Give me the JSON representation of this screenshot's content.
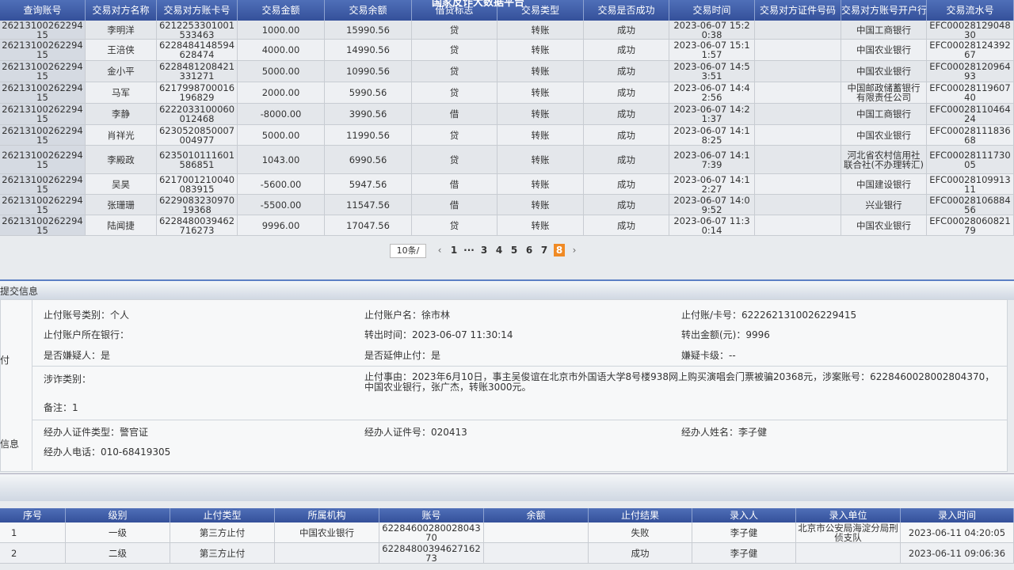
{
  "header": {
    "title": "国家反诈大数据平台"
  },
  "transactions": {
    "columns": [
      "查询账号",
      "交易对方名称",
      "交易对方账卡号",
      "交易金额",
      "交易余额",
      "借贷标志",
      "交易类型",
      "交易是否成功",
      "交易时间",
      "交易对方证件号码",
      "交易对方账号开户行",
      "交易流水号"
    ],
    "rows": [
      [
        "2621310026229415",
        "李明洋",
        "6212253301001533463",
        "1000.00",
        "15990.56",
        "贷",
        "转账",
        "成功",
        "2023-06-07 15:20:38",
        null,
        "中国工商银行",
        "EFC0002812904830"
      ],
      [
        "2621310026229415",
        "王涪侠",
        "6228484148594628474",
        "4000.00",
        "14990.56",
        "贷",
        "转账",
        "成功",
        "2023-06-07 15:11:57",
        null,
        "中国农业银行",
        "EFC0002812439267"
      ],
      [
        "2621310026229415",
        "金小平",
        "6228481208421331271",
        "5000.00",
        "10990.56",
        "贷",
        "转账",
        "成功",
        "2023-06-07 14:53:51",
        null,
        "中国农业银行",
        "EFC0002812096493"
      ],
      [
        "2621310026229415",
        "马军",
        "6217998700016196829",
        "2000.00",
        "5990.56",
        "贷",
        "转账",
        "成功",
        "2023-06-07 14:42:56",
        null,
        "中国邮政储蓄银行有限责任公司",
        "EFC0002811960740"
      ],
      [
        "2621310026229415",
        "李静",
        "6222033100060012468",
        "-8000.00",
        "3990.56",
        "借",
        "转账",
        "成功",
        "2023-06-07 14:21:37",
        null,
        "中国工商银行",
        "EFC0002811046424"
      ],
      [
        "2621310026229415",
        "肖祥光",
        "6230520850007004977",
        "5000.00",
        "11990.56",
        "贷",
        "转账",
        "成功",
        "2023-06-07 14:18:25",
        null,
        "中国农业银行",
        "EFC0002811183668"
      ],
      [
        "2621310026229415",
        "李殿政",
        "6235010111601586851",
        "1043.00",
        "6990.56",
        "贷",
        "转账",
        "成功",
        "2023-06-07 14:17:39",
        null,
        "河北省农村信用社联合社(不办理转汇)",
        "EFC0002811173005"
      ],
      [
        "2621310026229415",
        "吴昊",
        "6217001210040083915",
        "-5600.00",
        "5947.56",
        "借",
        "转账",
        "成功",
        "2023-06-07 14:12:27",
        null,
        "中国建设银行",
        "EFC0002810991311"
      ],
      [
        "2621310026229415",
        "张珊珊",
        "622908323097019368",
        "-5500.00",
        "11547.56",
        "借",
        "转账",
        "成功",
        "2023-06-07 14:09:52",
        null,
        "兴业银行",
        "EFC0002810688456"
      ],
      [
        "2621310026229415",
        "陆闻捷",
        "6228480039462716273",
        "9996.00",
        "17047.56",
        "贷",
        "转账",
        "成功",
        "2023-06-07 11:30:14",
        null,
        "中国农业银行",
        "EFC0002806082179"
      ]
    ]
  },
  "pagination": {
    "page_size": "10条/",
    "pages": [
      "1",
      "···",
      "3",
      "4",
      "5",
      "6",
      "7",
      "8"
    ],
    "active": "8"
  },
  "submit_info": {
    "title": "提交信息",
    "side_labels": [
      "付",
      "信息"
    ],
    "fields": [
      [
        "止付账号类别：个人",
        "止付账户名：徐市林",
        "止付账/卡号：6222621310026229415"
      ],
      [
        "止付账户所在银行：",
        "转出时间：2023-06-07 11:30:14",
        "转出金额(元)：9996"
      ],
      [
        "是否嫌疑人：是",
        "是否延伸止付：是",
        "嫌疑卡级：--"
      ]
    ],
    "fraud_type": "涉诈类别：",
    "reason": "止付事由：2023年6月10日，事主吴俊谊在北京市外国语大学8号楼938网上购买演唱会门票被骗20368元，涉案账号：6228460028002804370，中国农业银行，张广杰，转账3000元。",
    "remark": "备注：1",
    "handler": [
      "经办人证件类型：警官证",
      "经办人证件号：020413",
      "经办人姓名：李子健"
    ],
    "phone": "经办人电话：010-68419305"
  },
  "stop_results": {
    "columns": [
      "序号",
      "级别",
      "止付类型",
      "所属机构",
      "账号",
      "余额",
      "止付结果",
      "录入人",
      "录入单位",
      "录入时间"
    ],
    "rows": [
      [
        "1",
        "一级",
        "第三方止付",
        "中国农业银行",
        "6228460028002804370",
        null,
        "失败",
        "李子健",
        "北京市公安局海淀分局刑侦支队",
        "2023-06-11 04:20:05"
      ],
      [
        "2",
        "二级",
        "第三方止付",
        null,
        "6228480039462716273",
        null,
        "成功",
        "李子健",
        null,
        "2023-06-11 09:06:36"
      ]
    ]
  }
}
